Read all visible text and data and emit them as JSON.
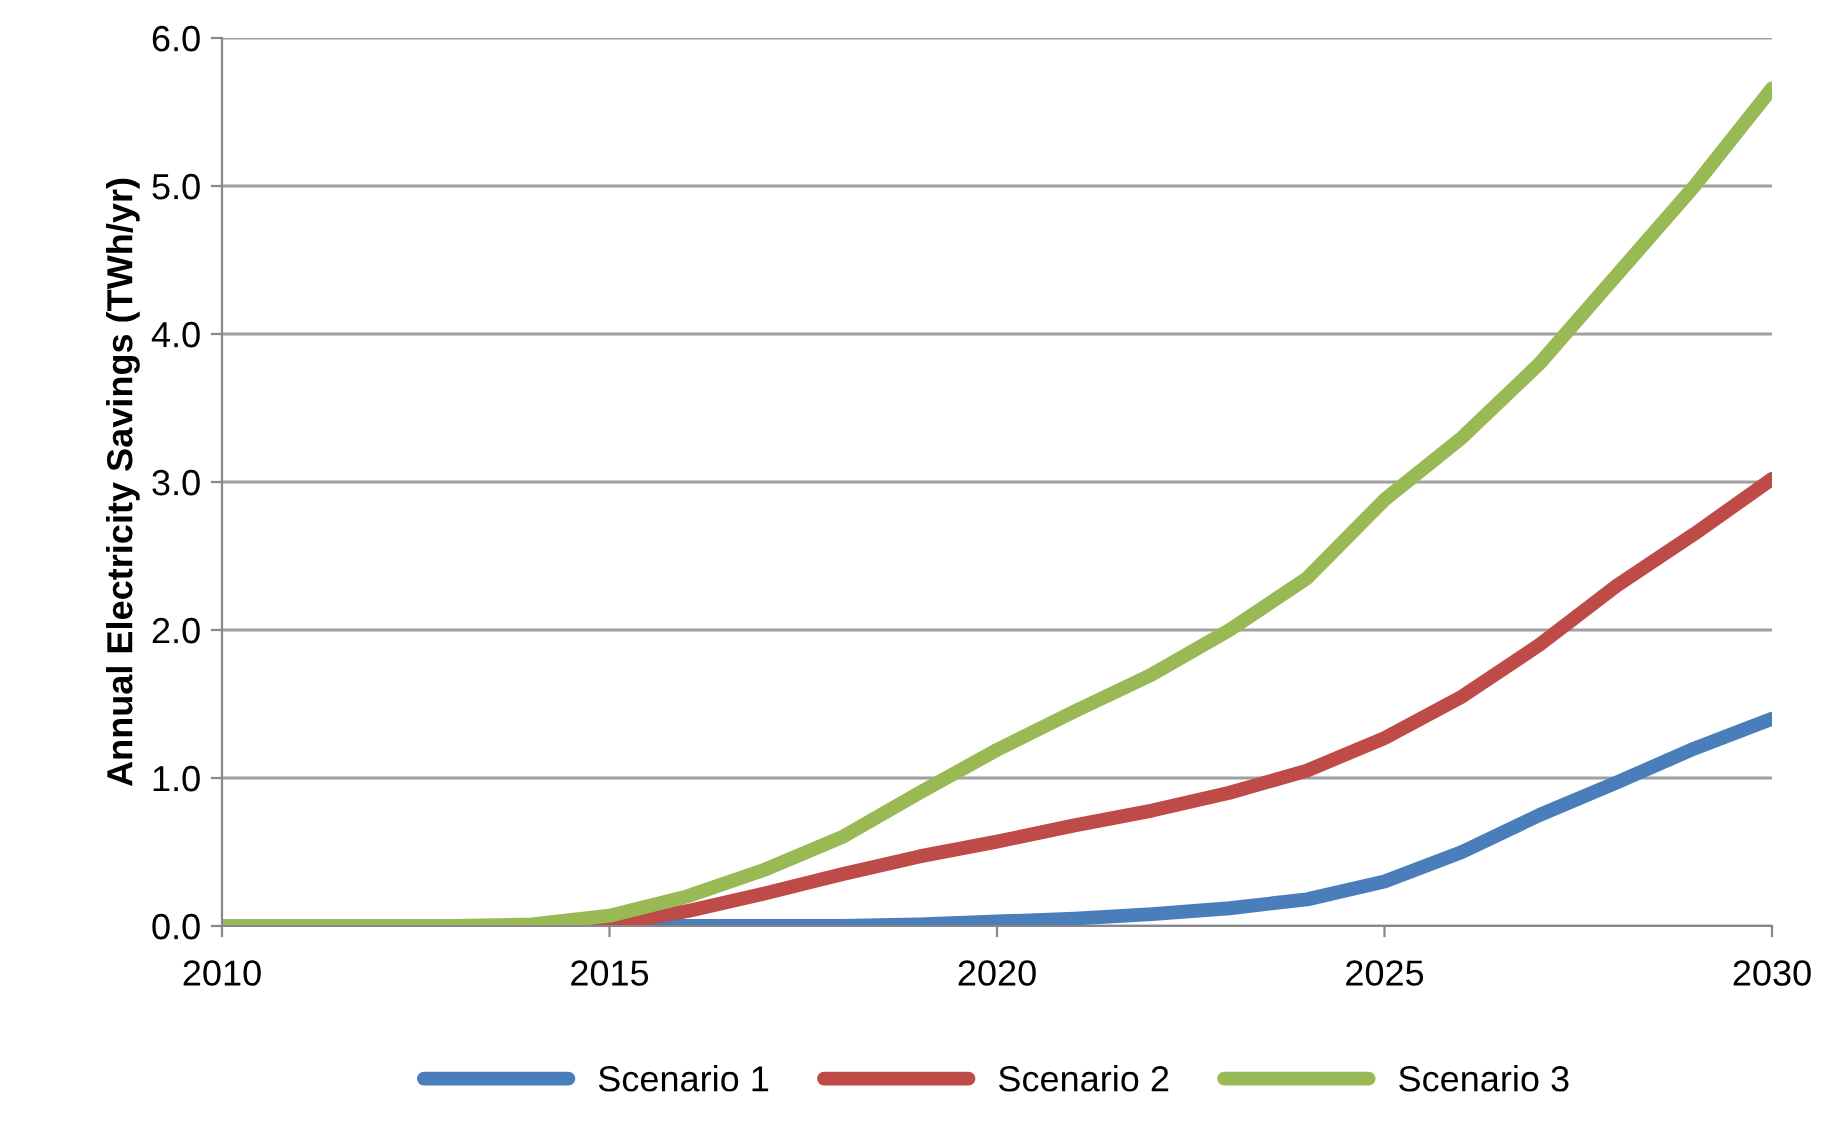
{
  "chart_data": {
    "type": "line",
    "ylabel": "Annual Electricity Savings (TWh/yr)",
    "x": [
      2010,
      2011,
      2012,
      2013,
      2014,
      2015,
      2016,
      2017,
      2018,
      2019,
      2020,
      2021,
      2022,
      2023,
      2024,
      2025,
      2026,
      2027,
      2028,
      2029,
      2030
    ],
    "series": [
      {
        "name": "Scenario 1",
        "color": "#4a7ebb",
        "values": [
          null,
          null,
          null,
          null,
          0,
          0,
          0,
          0,
          0,
          0.01,
          0.03,
          0.05,
          0.08,
          0.12,
          0.18,
          0.3,
          0.5,
          0.75,
          0.97,
          1.2,
          1.4
        ]
      },
      {
        "name": "Scenario 2",
        "color": "#be4b48",
        "values": [
          null,
          null,
          null,
          null,
          0,
          0.01,
          0.1,
          0.22,
          0.35,
          0.47,
          0.57,
          0.68,
          0.78,
          0.9,
          1.05,
          1.27,
          1.55,
          1.9,
          2.3,
          2.65,
          3.02
        ]
      },
      {
        "name": "Scenario 3",
        "color": "#98b954",
        "values": [
          0,
          0,
          0,
          0,
          0.01,
          0.07,
          0.2,
          0.38,
          0.6,
          0.9,
          1.19,
          1.45,
          1.7,
          2.0,
          2.35,
          2.88,
          3.3,
          3.8,
          4.4,
          5.0,
          5.66
        ]
      }
    ],
    "xlim": [
      2010,
      2030
    ],
    "xticks": [
      2010,
      2015,
      2020,
      2025,
      2030
    ],
    "ylim": [
      0,
      6
    ],
    "yticks": [
      {
        "value": 0,
        "label": "0.0"
      },
      {
        "value": 1,
        "label": "1.0"
      },
      {
        "value": 2,
        "label": "2.0"
      },
      {
        "value": 3,
        "label": "3.0"
      },
      {
        "value": 4,
        "label": "4.0"
      },
      {
        "value": 5,
        "label": "5.0"
      },
      {
        "value": 6,
        "label": "6.0"
      }
    ],
    "grid": "y",
    "legend": "bottom",
    "marker": "none",
    "line_style": "solid"
  }
}
